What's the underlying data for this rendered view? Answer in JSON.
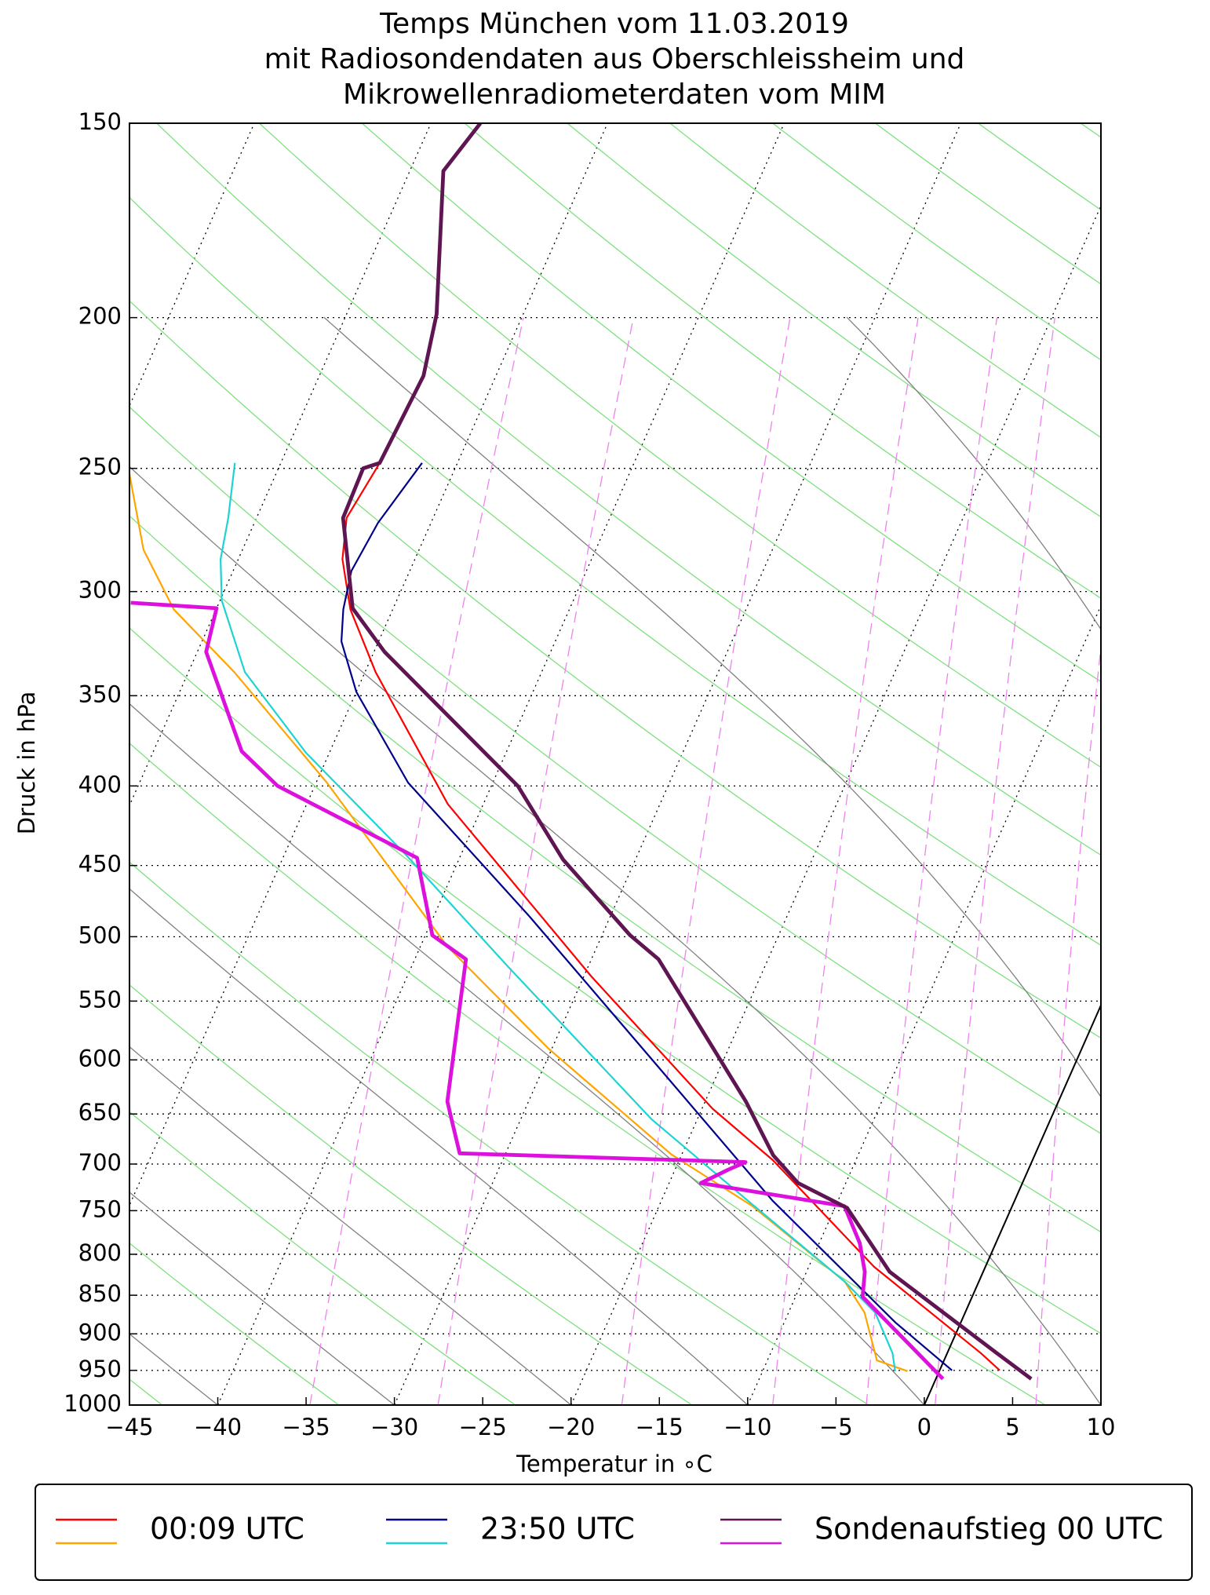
{
  "chart_data": {
    "type": "skew-t",
    "title": [
      "Temps München vom 11.03.2019",
      "mit Radiosondendaten aus Oberschleissheim und",
      "Mikrowellenradiometerdaten vom MIM"
    ],
    "x_label": "Temperatur in ∘C",
    "y_label": "Druck in hPa",
    "log_scale_y": true,
    "grid": true,
    "xlim": [
      -45,
      10
    ],
    "ylim": [
      1000,
      150
    ],
    "xticks": [
      {
        "value": -45,
        "label": "−45"
      },
      {
        "value": -40,
        "label": "−40"
      },
      {
        "value": -35,
        "label": "−35"
      },
      {
        "value": -30,
        "label": "−30"
      },
      {
        "value": -25,
        "label": "−25"
      },
      {
        "value": -20,
        "label": "−20"
      },
      {
        "value": -15,
        "label": "−15"
      },
      {
        "value": -10,
        "label": "−10"
      },
      {
        "value": -5,
        "label": "−5"
      },
      0,
      5,
      10
    ],
    "yticks": [
      150,
      200,
      250,
      300,
      350,
      400,
      450,
      500,
      550,
      600,
      650,
      700,
      750,
      800,
      850,
      900,
      950,
      1000
    ],
    "legend": "bottom",
    "series": [
      {
        "name": "00:09 UTC",
        "temperature": {
          "color": "#ff0000",
          "pressure": [
            950,
            926,
            815,
            696,
            645,
            530,
            411,
            338,
            308,
            286,
            269,
            248
          ],
          "values": [
            3.4,
            1.9,
            -6.3,
            -14.7,
            -19.4,
            -29.6,
            -42.0,
            -49.4,
            -52.4,
            -54.1,
            -54.9,
            -54.4
          ]
        },
        "dewpoint": {
          "color": "#ffa500",
          "pressure": [
            951,
            936,
            872,
            833,
            745,
            690,
            590,
            507,
            398,
            338,
            308,
            282,
            252
          ],
          "values": [
            -1.8,
            -3.8,
            -5.7,
            -7.6,
            -14.7,
            -20.6,
            -30.2,
            -38.5,
            -49.4,
            -57.4,
            -62.4,
            -65.6,
            -68.3
          ]
        }
      },
      {
        "name": "23:50 UTC",
        "temperature": {
          "color": "#00008b",
          "pressure": [
            950,
            885,
            739,
            598,
            485,
            398,
            348,
            323,
            308,
            291,
            271,
            248
          ],
          "values": [
            0.7,
            -3.7,
            -13.7,
            -24.2,
            -34.6,
            -44.8,
            -50.0,
            -52.1,
            -52.8,
            -53.3,
            -53.0,
            -52.0
          ]
        },
        "dewpoint": {
          "color": "#1fd3d3",
          "pressure": [
            951,
            926,
            872,
            833,
            739,
            655,
            523,
            443,
            381,
            338,
            304,
            286,
            269,
            248
          ],
          "values": [
            -2.5,
            -3.1,
            -5.1,
            -7.6,
            -15.1,
            -22.6,
            -34.5,
            -43.1,
            -51.3,
            -56.8,
            -59.9,
            -61.0,
            -61.6,
            -62.6
          ]
        }
      },
      {
        "name": "Sondenaufstieg 00 UTC",
        "temperature": {
          "color": "#5e1552",
          "pressure": [
            962,
            926,
            821,
            747,
            720,
            691,
            638,
            517,
            499,
            446,
            400,
            328,
            307.5,
            269,
            250,
            248,
            218,
            199,
            161,
            150
          ],
          "values": [
            5.4,
            2.8,
            -5.3,
            -9.3,
            -12.7,
            -14.8,
            -17.7,
            -26.2,
            -28.4,
            -34.1,
            -38.5,
            -49.4,
            -52.3,
            -55.1,
            -55.2,
            -54.4,
            -54.1,
            -54.9,
            -58.1,
            -57.2
          ]
        },
        "dewpoint": {
          "color": "#dd11dd",
          "pressure": [
            962,
            852,
            821,
            787,
            745,
            720,
            706,
            698,
            689,
            658,
            638,
            517,
            499,
            445,
            400,
            380,
            328,
            307.5,
            305
          ],
          "values": [
            0.4,
            -6.2,
            -6.7,
            -7.7,
            -9.5,
            -18.2,
            -17.0,
            -16.2,
            -32.6,
            -33.8,
            -34.6,
            -37.1,
            -39.6,
            -42.4,
            -52.1,
            -55.0,
            -59.5,
            -60.0,
            -65.0
          ]
        }
      }
    ]
  }
}
